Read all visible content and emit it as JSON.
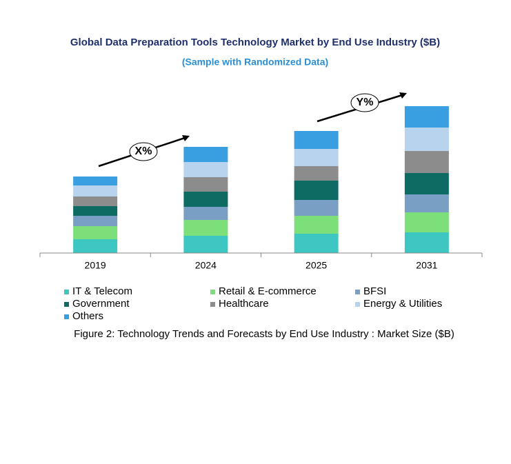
{
  "chart_data": {
    "type": "stacked_bar",
    "title": "Global Data Preparation Tools Technology Market by End Use Industry ($B)",
    "subtitle": "(Sample with Randomized Data)",
    "caption": "Figure 2: Technology  Trends  and Forecasts by End Use Industry  : Market Size ($B)",
    "annotations": [
      "X%",
      "Y%"
    ],
    "categories": [
      "2019",
      "2024",
      "2025",
      "2031"
    ],
    "ylim": [
      0,
      220
    ],
    "series": [
      {
        "name": "IT & Telecom",
        "color": "#3ec7c2",
        "values": [
          20,
          25,
          28,
          30
        ]
      },
      {
        "name": "Retail & E-commerce",
        "color": "#7ddf7a",
        "values": [
          19,
          23,
          26,
          29
        ]
      },
      {
        "name": "BFSI",
        "color": "#7a9fc4",
        "values": [
          15,
          19,
          23,
          26
        ]
      },
      {
        "name": "Government",
        "color": "#0d6b63",
        "values": [
          14,
          22,
          28,
          31
        ]
      },
      {
        "name": "Healthcare",
        "color": "#8c8c8c",
        "values": [
          14,
          21,
          21,
          32
        ]
      },
      {
        "name": "Energy & Utilities",
        "color": "#b8d3ee",
        "values": [
          16,
          22,
          25,
          34
        ]
      },
      {
        "name": "Others",
        "color": "#3a9fe0",
        "values": [
          13,
          22,
          26,
          31
        ]
      }
    ]
  }
}
